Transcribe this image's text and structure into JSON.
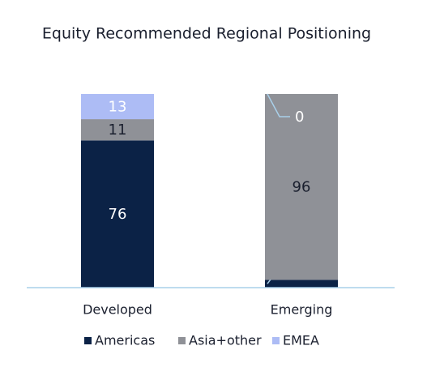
{
  "chart_data": {
    "type": "stacked_bar",
    "title": "Equity Recommended Regional Positioning",
    "categories": [
      "Developed",
      "Emerging"
    ],
    "series": [
      {
        "name": "Americas",
        "color": "#0b2246",
        "values": [
          76,
          4
        ]
      },
      {
        "name": "Asia+other",
        "color": "#8f9197",
        "values": [
          11,
          96
        ]
      },
      {
        "name": "EMEA",
        "color": "#adbcf5",
        "values": [
          13,
          0
        ]
      }
    ],
    "ylim": [
      0,
      100
    ],
    "legend": "bottom"
  }
}
